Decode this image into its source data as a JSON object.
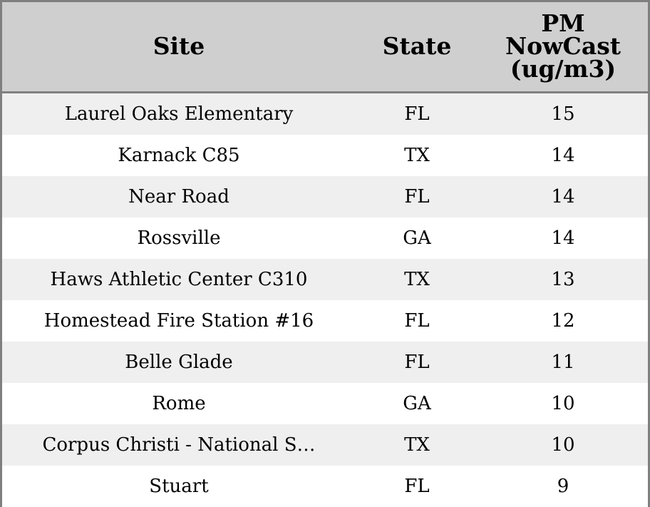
{
  "chart_data": {
    "type": "table",
    "columns": [
      "Site",
      "State",
      "PM\nNowCast\n(ug/m3)"
    ],
    "rows": [
      {
        "site": "Laurel Oaks Elementary",
        "state": "FL",
        "pm": 15
      },
      {
        "site": "Karnack C85",
        "state": "TX",
        "pm": 14
      },
      {
        "site": "Near Road",
        "state": "FL",
        "pm": 14
      },
      {
        "site": "Rossville",
        "state": "GA",
        "pm": 14
      },
      {
        "site": "Haws Athletic Center C310",
        "state": "TX",
        "pm": 13
      },
      {
        "site": "Homestead Fire Station #16",
        "state": "FL",
        "pm": 12
      },
      {
        "site": "Belle Glade",
        "state": "FL",
        "pm": 11
      },
      {
        "site": "Rome",
        "state": "GA",
        "pm": 10
      },
      {
        "site": "Corpus Christi - National S…",
        "state": "TX",
        "pm": 10
      },
      {
        "site": "Stuart",
        "state": "FL",
        "pm": 9
      }
    ]
  }
}
